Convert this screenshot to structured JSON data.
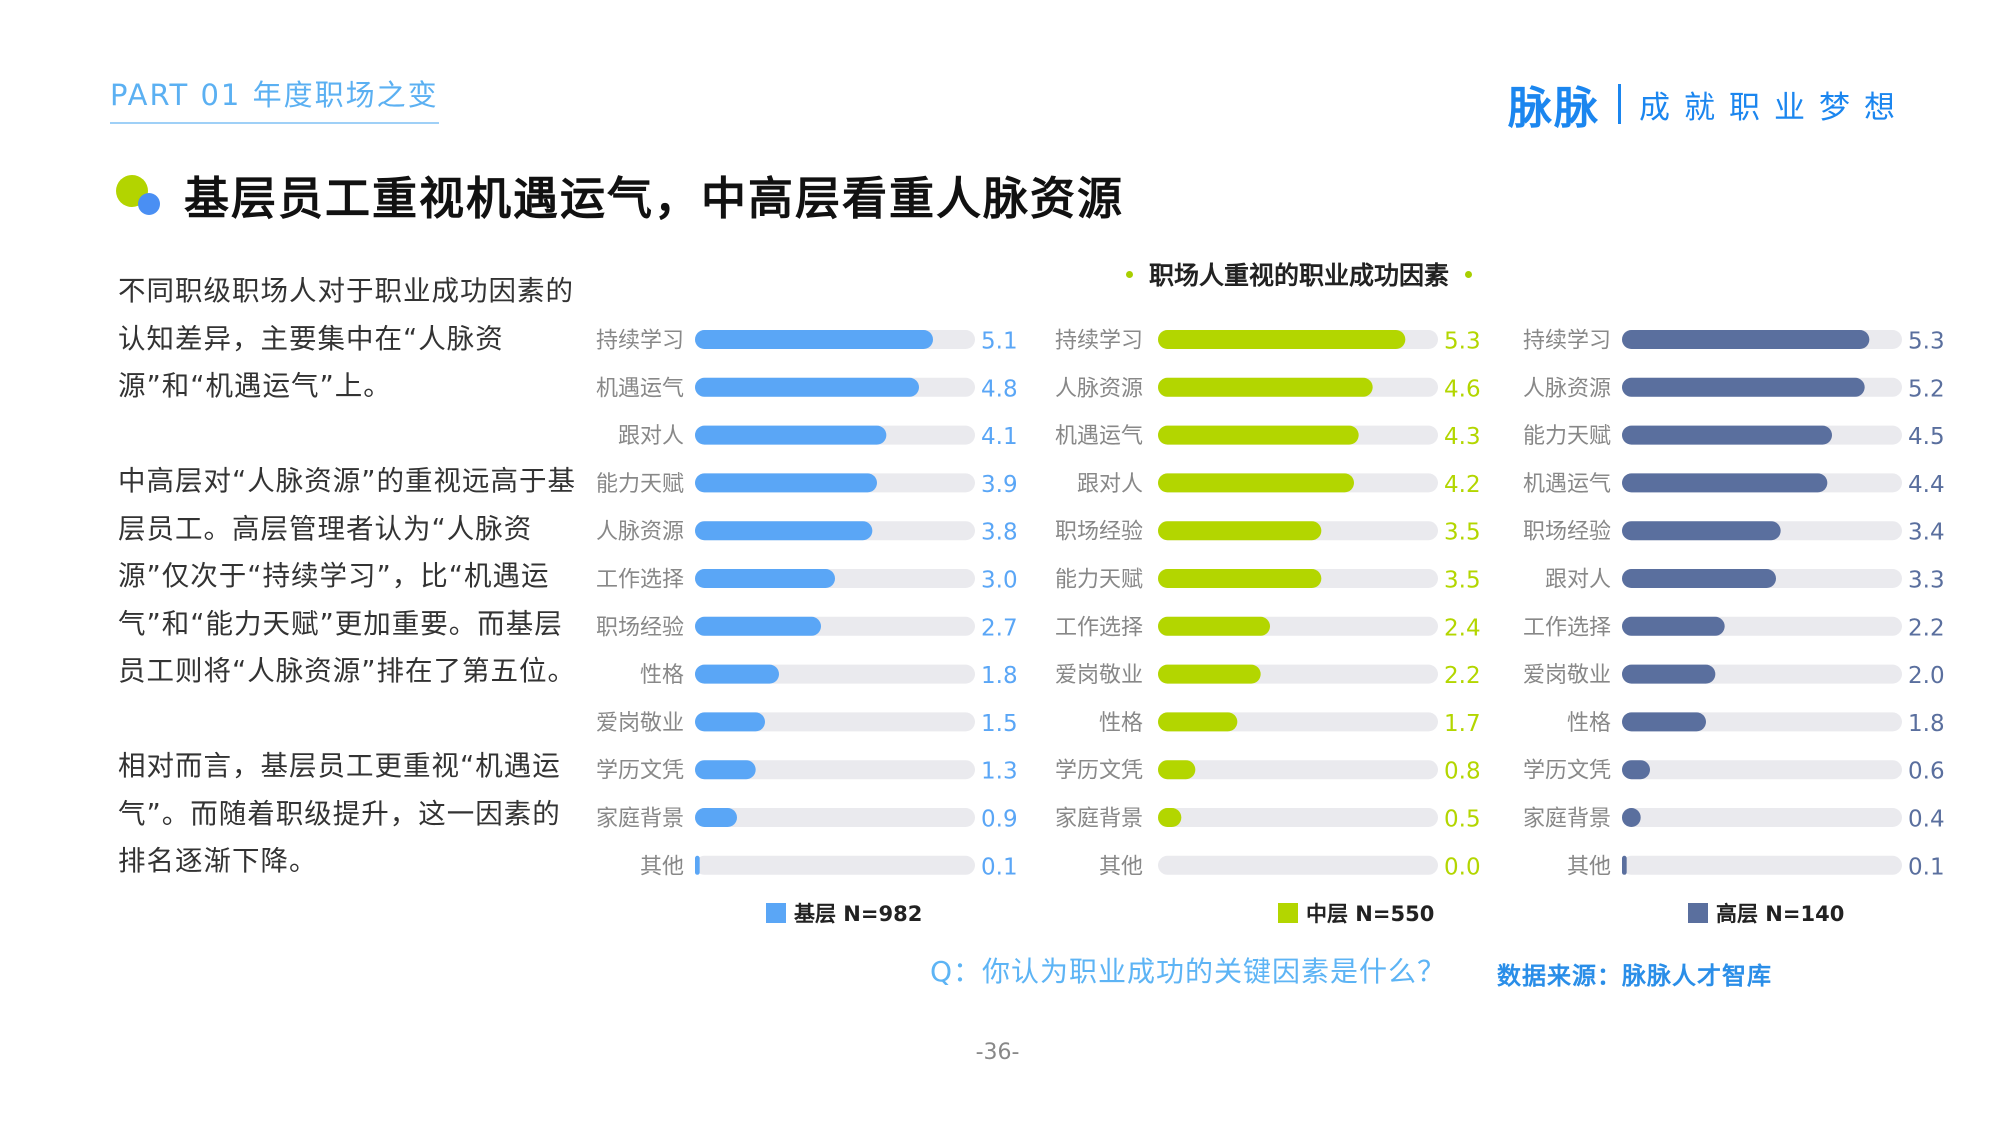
{
  "header": {
    "section": "PART 01 年度职场之变",
    "brand_logo": "脉脉",
    "brand_slogan": "成就职业梦想"
  },
  "title": "基层员工重视机遇运气，中高层看重人脉资源",
  "left_text": {
    "para1": "不同职级职场人对于职业成功因素的认知差异，主要集中在“人脉资源”和“机遇运气”上。",
    "para2": "中高层对“人脉资源”的重视远高于基层员工。高层管理者认为“人脉资源”仅次于“持续学习”，比“机遇运气”和“能力天赋”更加重要。而基层员工则将“人脉资源”排在了第五位。",
    "para3": "相对而言，基层员工更重视“机遇运气”。而随着职级提升，这一因素的排名逐渐下降。"
  },
  "footer": {
    "question": "Q：你认为职业成功的关键因素是什么？",
    "source": "数据来源：脉脉人才智库",
    "page": "-36-"
  },
  "colors": {
    "base": "#5aa6f6",
    "mid": "#b3d600",
    "senior": "#5a6f9e",
    "track": "#eaeaee"
  },
  "chart_data": {
    "title": "职场人重视的职业成功因素",
    "type": "bar",
    "orientation": "horizontal",
    "xlim": [
      0,
      6
    ],
    "panels": [
      {
        "name": "基层 N=982",
        "categories": [
          "持续学习",
          "机遇运气",
          "跟对人",
          "能力天赋",
          "人脉资源",
          "工作选择",
          "职场经验",
          "性格",
          "爱岗敬业",
          "学历文凭",
          "家庭背景",
          "其他"
        ],
        "values": [
          5.1,
          4.8,
          4.1,
          3.9,
          3.8,
          3.0,
          2.7,
          1.8,
          1.5,
          1.3,
          0.9,
          0.1
        ]
      },
      {
        "name": "中层 N=550",
        "categories": [
          "持续学习",
          "人脉资源",
          "机遇运气",
          "跟对人",
          "职场经验",
          "能力天赋",
          "工作选择",
          "爱岗敬业",
          "性格",
          "学历文凭",
          "家庭背景",
          "其他"
        ],
        "values": [
          5.3,
          4.6,
          4.3,
          4.2,
          3.5,
          3.5,
          2.4,
          2.2,
          1.7,
          0.8,
          0.5,
          0.0
        ]
      },
      {
        "name": "高层 N=140",
        "categories": [
          "持续学习",
          "人脉资源",
          "能力天赋",
          "机遇运气",
          "职场经验",
          "跟对人",
          "工作选择",
          "爱岗敬业",
          "性格",
          "学历文凭",
          "家庭背景",
          "其他"
        ],
        "values": [
          5.3,
          5.2,
          4.5,
          4.4,
          3.4,
          3.3,
          2.2,
          2.0,
          1.8,
          0.6,
          0.4,
          0.1
        ]
      }
    ]
  }
}
